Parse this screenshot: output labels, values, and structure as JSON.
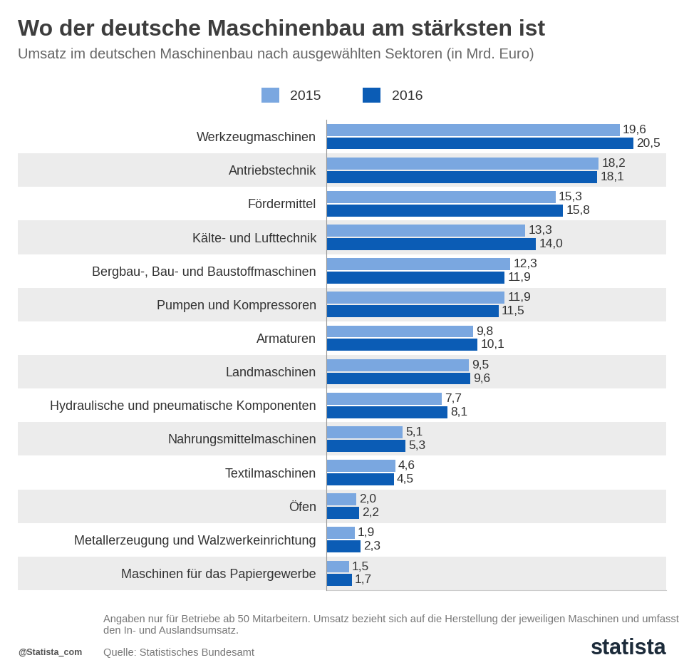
{
  "chart_data": {
    "type": "bar",
    "title": "Wo der deutsche Maschinenbau am stärksten ist",
    "subtitle": "Umsatz im deutschen Maschinenbau nach ausgewählten Sektoren (in Mrd. Euro)",
    "orientation": "horizontal",
    "categories": [
      "Werkzeugmaschinen",
      "Antriebstechnik",
      "Fördermittel",
      "Kälte- und Lufttechnik",
      "Bergbau-, Bau- und Baustoffmaschinen",
      "Pumpen und Kompressoren",
      "Armaturen",
      "Landmaschinen",
      "Hydraulische und pneumatische Komponenten",
      "Nahrungsmittelmaschinen",
      "Textilmaschinen",
      "Öfen",
      "Metallerzeugung und Walzwerkeinrichtung",
      "Maschinen für das Papiergewerbe"
    ],
    "series": [
      {
        "name": "2015",
        "color": "#7aa7e0",
        "values": [
          19.6,
          18.2,
          15.3,
          13.3,
          12.3,
          11.9,
          9.8,
          9.5,
          7.7,
          5.1,
          4.6,
          2.0,
          1.9,
          1.5
        ],
        "value_labels": [
          "19,6",
          "18,2",
          "15,3",
          "13,3",
          "12,3",
          "11,9",
          "9,8",
          "9,5",
          "7,7",
          "5,1",
          "4,6",
          "2,0",
          "1,9",
          "1,5"
        ]
      },
      {
        "name": "2016",
        "color": "#0b5cb5",
        "values": [
          20.5,
          18.1,
          15.8,
          14.0,
          11.9,
          11.5,
          10.1,
          9.6,
          8.1,
          5.3,
          4.5,
          2.2,
          2.3,
          1.7
        ],
        "value_labels": [
          "20,5",
          "18,1",
          "15,8",
          "14,0",
          "11,9",
          "11,5",
          "10,1",
          "9,6",
          "8,1",
          "5,3",
          "4,5",
          "2,2",
          "2,3",
          "1,7"
        ]
      }
    ],
    "xlim": [
      0,
      22.7
    ],
    "xticks": [],
    "tick_labels": "y",
    "data_labels": true,
    "legend": "upper center",
    "grid": false,
    "note": "Angaben nur für Betriebe ab 50 Mitarbeitern. Umsatz bezieht sich auf die Herstellung der jeweiligen Maschinen und umfasst den In- und Auslandsumsatz.",
    "source": "Quelle: Statistisches Bundesamt",
    "credit": "@Statista_com",
    "logo": "statista"
  }
}
